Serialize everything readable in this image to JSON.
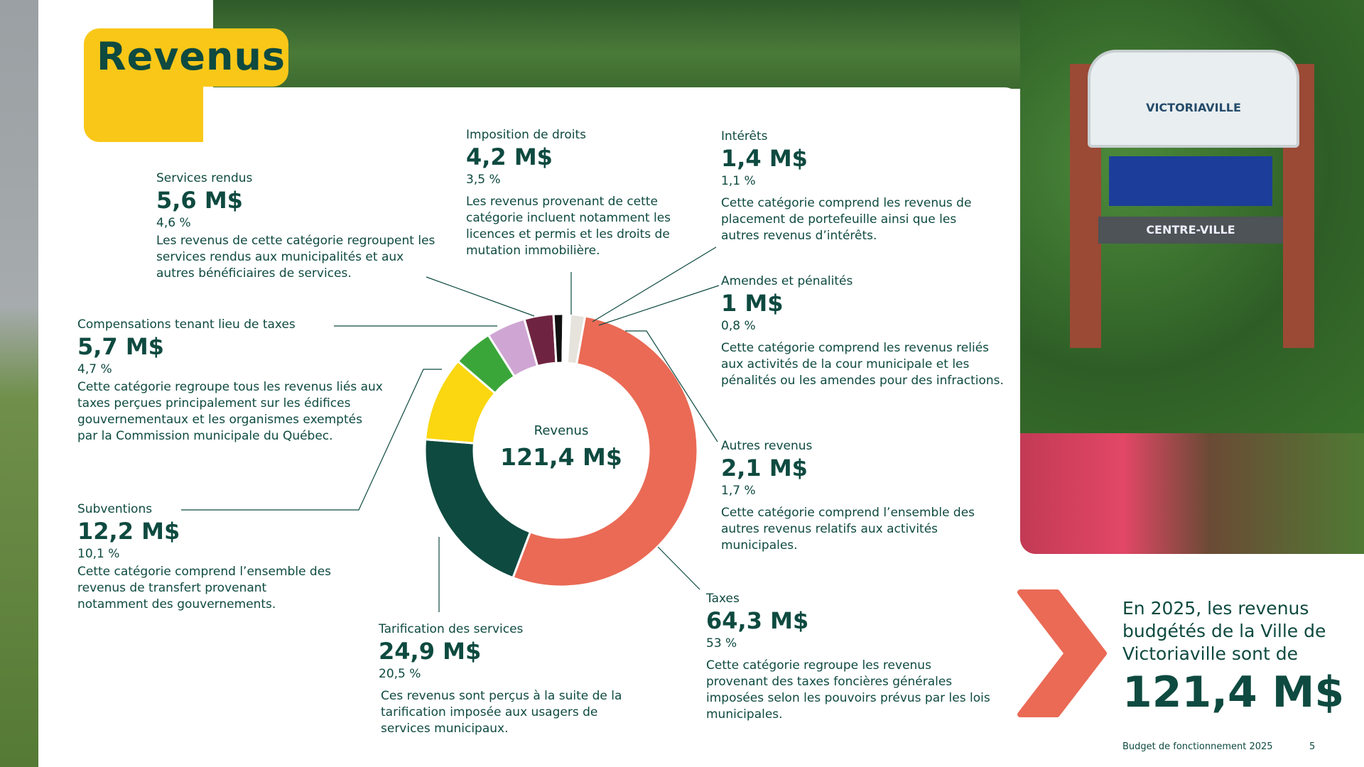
{
  "page": {
    "title": "Revenus",
    "footer": "Budget de fonctionnement 2025",
    "page_number": "5"
  },
  "photo": {
    "sign_name": "VICTORIAVILLE",
    "sign_arrow": "CENTRE-VILLE"
  },
  "colors": {
    "dark_green": "#0e4a40",
    "yellow": "#f9c718",
    "coral": "#ea6a55"
  },
  "categories": [
    {
      "id": "services-rendus",
      "name": "Services rendus",
      "amount": "5,6 M$",
      "pct": "4,6 %",
      "desc": "Les revenus de cette catégorie regroupent les services rendus aux municipalités et aux autres bénéficiaires de services."
    },
    {
      "id": "imposition-droits",
      "name": "Imposition de droits",
      "amount": "4,2 M$",
      "pct": "3,5 %",
      "desc": "Les revenus provenant de cette catégorie incluent notamment les licences et permis et les droits de mutation immobilière."
    },
    {
      "id": "interets",
      "name": "Intérêts",
      "amount": "1,4 M$",
      "pct": "1,1 %",
      "desc": "Cette catégorie comprend les revenus de placement de portefeuille ainsi que les autres revenus d’intérêts."
    },
    {
      "id": "amendes",
      "name": "Amendes et pénalités",
      "amount": "1 M$",
      "pct": "0,8 %",
      "desc": "Cette catégorie comprend les revenus reliés aux activités de la cour municipale et les pénalités ou les amendes pour des infractions."
    },
    {
      "id": "compensations",
      "name": "Compensations tenant lieu de taxes",
      "amount": "5,7 M$",
      "pct": "4,7 %",
      "desc": "Cette catégorie regroupe tous les revenus liés aux taxes perçues principalement sur les édifices gouvernementaux et les organismes exemptés par la Commission municipale du Québec."
    },
    {
      "id": "autres",
      "name": "Autres revenus",
      "amount": "2,1 M$",
      "pct": "1,7 %",
      "desc": "Cette catégorie comprend l’ensemble des autres revenus relatifs aux activités municipales."
    },
    {
      "id": "subventions",
      "name": "Subventions",
      "amount": "12,2 M$",
      "pct": "10,1 %",
      "desc": "Cette catégorie comprend l’ensemble des revenus de transfert provenant notamment des gouvernements."
    },
    {
      "id": "tarification",
      "name": "Tarification des services",
      "amount": "24,9 M$",
      "pct": "20,5 %",
      "desc": "Ces revenus sont perçus à la suite de la tarification imposée aux usagers de services municipaux."
    },
    {
      "id": "taxes",
      "name": "Taxes",
      "amount": "64,3 M$",
      "pct": "53 %",
      "desc": "Cette catégorie regroupe les revenus provenant des taxes foncières générales imposées selon les pouvoirs prévus par les lois municipales."
    }
  ],
  "chart_data": {
    "type": "pie",
    "center_label": "Revenus",
    "center_value": "121,4 M$",
    "slices": [
      {
        "label": "Taxes",
        "value": 64.3,
        "color": "#ea6a55"
      },
      {
        "label": "Tarification des services",
        "value": 24.9,
        "color": "#0e4a40"
      },
      {
        "label": "Subventions",
        "value": 12.2,
        "color": "#fad710"
      },
      {
        "label": "Compensations tenant lieu de taxes",
        "value": 5.7,
        "color": "#3aa63a"
      },
      {
        "label": "Services rendus",
        "value": 5.6,
        "color": "#cfa6d3"
      },
      {
        "label": "Imposition de droits",
        "value": 4.2,
        "color": "#6e2440"
      },
      {
        "label": "Intérêts",
        "value": 1.4,
        "color": "#111111"
      },
      {
        "label": "Amendes et pénalités",
        "value": 1.0,
        "color": "#ffffff"
      },
      {
        "label": "Autres revenus",
        "value": 2.1,
        "color": "#e6e3dd"
      }
    ]
  },
  "summary": {
    "text": "En 2025, les revenus budgétés de la Ville de Victoriaville sont de",
    "value": "121,4 M$"
  }
}
